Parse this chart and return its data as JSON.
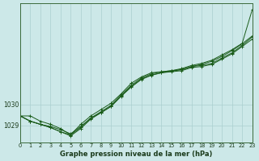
{
  "background_color": "#cce8e8",
  "plot_bg_color": "#cce8e8",
  "grid_color": "#aacfcf",
  "line_color": "#1a5c1a",
  "xlim": [
    0,
    23
  ],
  "ylim": [
    1028.2,
    1034.8
  ],
  "yticks": [
    1029,
    1030
  ],
  "ytick_labels": [
    "1029",
    "1030"
  ],
  "xticks": [
    0,
    1,
    2,
    3,
    4,
    5,
    6,
    7,
    8,
    9,
    10,
    11,
    12,
    13,
    14,
    15,
    16,
    17,
    18,
    19,
    20,
    21,
    22,
    23
  ],
  "xlabel": "Graphe pression niveau de la mer (hPa)",
  "series": [
    [
      1029.45,
      1029.45,
      1029.2,
      1029.05,
      1028.85,
      1028.55,
      1029.05,
      1029.45,
      1029.75,
      1030.05,
      1030.5,
      1031.0,
      1031.3,
      1031.5,
      1031.55,
      1031.6,
      1031.7,
      1031.85,
      1031.95,
      1032.1,
      1032.35,
      1032.6,
      1032.9,
      1034.5
    ],
    [
      1029.45,
      1029.2,
      1029.05,
      1028.9,
      1028.7,
      1028.55,
      1028.9,
      1029.35,
      1029.65,
      1029.95,
      1030.45,
      1030.9,
      1031.25,
      1031.45,
      1031.55,
      1031.6,
      1031.65,
      1031.8,
      1031.85,
      1031.95,
      1032.2,
      1032.45,
      1032.8,
      1033.2
    ],
    [
      1029.45,
      1029.2,
      1029.05,
      1028.9,
      1028.7,
      1028.5,
      1028.85,
      1029.3,
      1029.6,
      1029.9,
      1030.4,
      1030.85,
      1031.2,
      1031.4,
      1031.5,
      1031.55,
      1031.6,
      1031.75,
      1031.8,
      1031.9,
      1032.15,
      1032.4,
      1032.75,
      1033.1
    ],
    [
      1029.45,
      1029.2,
      1029.05,
      1028.95,
      1028.8,
      1028.6,
      1028.95,
      1029.35,
      1029.6,
      1029.9,
      1030.38,
      1030.82,
      1031.18,
      1031.38,
      1031.5,
      1031.58,
      1031.65,
      1031.8,
      1031.9,
      1032.05,
      1032.28,
      1032.55,
      1032.88,
      1033.25
    ]
  ]
}
